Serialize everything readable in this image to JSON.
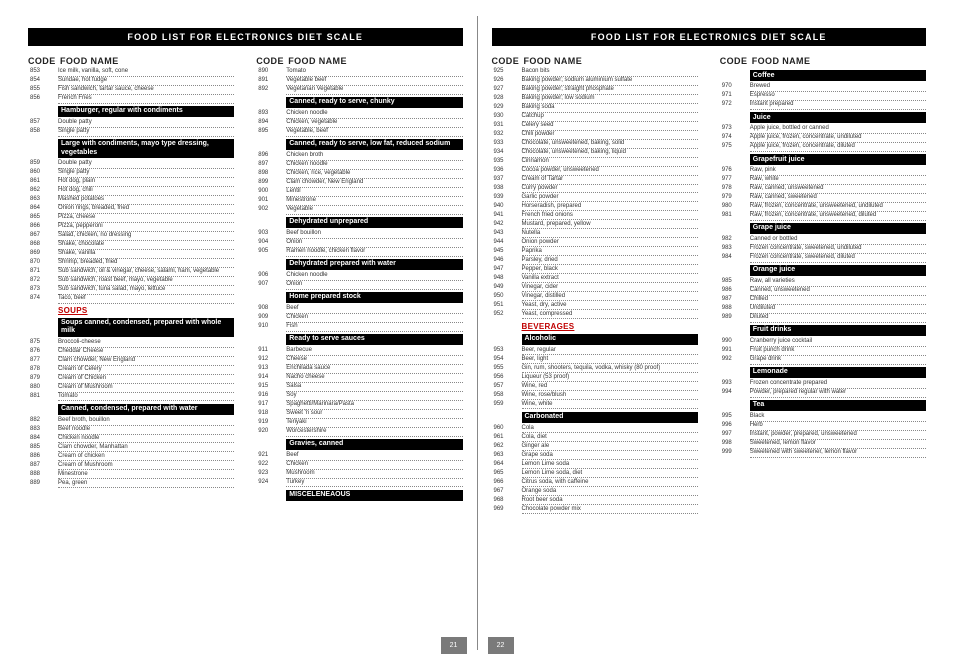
{
  "title": "FOOD LIST FOR ELECTRONICS DIET SCALE",
  "head_code": "CODE",
  "head_name": "FOOD NAME",
  "page_left_num": "21",
  "page_right_num": "22",
  "col1": [
    {
      "t": "row",
      "c": "853",
      "n": "Ice milk, vanilla, soft, cone"
    },
    {
      "t": "row",
      "c": "854",
      "n": "Sundae, hot fudge"
    },
    {
      "t": "row",
      "c": "855",
      "n": "Fish sandwich, tartar sauce, cheese"
    },
    {
      "t": "row",
      "c": "856",
      "n": "French Fries"
    },
    {
      "t": "black",
      "n": "Hamburger, regular with condiments"
    },
    {
      "t": "row",
      "c": "857",
      "n": "Double patty"
    },
    {
      "t": "row",
      "c": "858",
      "n": "Single patty"
    },
    {
      "t": "black",
      "n": "Large with condiments, mayo type dressing, vegetables"
    },
    {
      "t": "row",
      "c": "859",
      "n": "Double patty"
    },
    {
      "t": "row",
      "c": "860",
      "n": "Single patty"
    },
    {
      "t": "row",
      "c": "861",
      "n": "Hot dog, plain"
    },
    {
      "t": "row",
      "c": "862",
      "n": "Hot dog, chili"
    },
    {
      "t": "row",
      "c": "863",
      "n": "Mashed potatoes"
    },
    {
      "t": "row",
      "c": "864",
      "n": "Onion rings, breaded, fried"
    },
    {
      "t": "row",
      "c": "865",
      "n": "Pizza, cheese"
    },
    {
      "t": "row",
      "c": "866",
      "n": "Pizza, pepperoni"
    },
    {
      "t": "row",
      "c": "867",
      "n": "Salad, chicken, no dressing"
    },
    {
      "t": "row",
      "c": "868",
      "n": "Shake, chocolate"
    },
    {
      "t": "row",
      "c": "869",
      "n": "Shake, vanilla"
    },
    {
      "t": "row",
      "c": "870",
      "n": "Shrimp, breaded, fried"
    },
    {
      "t": "row",
      "c": "871",
      "n": "Sub sandwich, oil & vinegar, cheese, salami, ham, vegetable"
    },
    {
      "t": "row",
      "c": "872",
      "n": "Sub sandwich, roast beef, mayo, vegetable"
    },
    {
      "t": "row",
      "c": "873",
      "n": "Sub sandwich, tuna salad, mayo, lettuce"
    },
    {
      "t": "row",
      "c": "874",
      "n": "Taco, beef"
    },
    {
      "t": "red",
      "n": "SOUPS"
    },
    {
      "t": "black",
      "n": "Soups canned, condensed, prepared with whole milk"
    },
    {
      "t": "row",
      "c": "875",
      "n": "Broccoli-cheese"
    },
    {
      "t": "row",
      "c": "876",
      "n": "Cheddar Cheese"
    },
    {
      "t": "row",
      "c": "877",
      "n": "Clam chowder, New England"
    },
    {
      "t": "row",
      "c": "878",
      "n": "Cream of Celery"
    },
    {
      "t": "row",
      "c": "879",
      "n": "Cream of Chicken"
    },
    {
      "t": "row",
      "c": "880",
      "n": "Cream of Mushroom"
    },
    {
      "t": "row",
      "c": "881",
      "n": "Tomato"
    },
    {
      "t": "black",
      "n": "Canned, condensed, prepared with water"
    },
    {
      "t": "row",
      "c": "882",
      "n": "Beef broth, bouillon"
    },
    {
      "t": "row",
      "c": "883",
      "n": "Beef noodle"
    },
    {
      "t": "row",
      "c": "884",
      "n": "Chicken noodle"
    },
    {
      "t": "row",
      "c": "885",
      "n": "Clam chowder, Manhattan"
    },
    {
      "t": "row",
      "c": "886",
      "n": "Cream of chicken"
    },
    {
      "t": "row",
      "c": "887",
      "n": "Cream of Mushroom"
    },
    {
      "t": "row",
      "c": "888",
      "n": "Minestrone"
    },
    {
      "t": "row",
      "c": "889",
      "n": "Pea, green"
    }
  ],
  "col2": [
    {
      "t": "row",
      "c": "890",
      "n": "Tomato"
    },
    {
      "t": "row",
      "c": "891",
      "n": "Vegetable beef"
    },
    {
      "t": "row",
      "c": "892",
      "n": "Vegetarian Vegetable"
    },
    {
      "t": "black",
      "n": "Canned, ready to serve, chunky"
    },
    {
      "t": "row",
      "c": "893",
      "n": "Chicken noodle"
    },
    {
      "t": "row",
      "c": "894",
      "n": "Chicken, vegetable"
    },
    {
      "t": "row",
      "c": "895",
      "n": "Vegetable, beef"
    },
    {
      "t": "black",
      "n": "Canned, ready to serve, low fat, reduced sodium"
    },
    {
      "t": "row",
      "c": "896",
      "n": "Chicken broth"
    },
    {
      "t": "row",
      "c": "897",
      "n": "Chicken noodle"
    },
    {
      "t": "row",
      "c": "898",
      "n": "Chicken, rice, vegetable"
    },
    {
      "t": "row",
      "c": "899",
      "n": "Clam chowder, New England"
    },
    {
      "t": "row",
      "c": "900",
      "n": "Lentil"
    },
    {
      "t": "row",
      "c": "901",
      "n": "Minestrone"
    },
    {
      "t": "row",
      "c": "902",
      "n": "Vegetable"
    },
    {
      "t": "black",
      "n": "Dehydrated unprepared"
    },
    {
      "t": "row",
      "c": "903",
      "n": "Beef bouillon"
    },
    {
      "t": "row",
      "c": "904",
      "n": "Onion"
    },
    {
      "t": "row",
      "c": "905",
      "n": "Ramen noodle, chicken flavor"
    },
    {
      "t": "black",
      "n": "Dehydrated prepared with water"
    },
    {
      "t": "row",
      "c": "906",
      "n": "Chicken noodle"
    },
    {
      "t": "row",
      "c": "907",
      "n": "Onion"
    },
    {
      "t": "black",
      "n": "Home prepared stock"
    },
    {
      "t": "row",
      "c": "908",
      "n": "Beef"
    },
    {
      "t": "row",
      "c": "909",
      "n": "Chicken"
    },
    {
      "t": "row",
      "c": "910",
      "n": "Fish"
    },
    {
      "t": "black",
      "n": "Ready to serve sauces"
    },
    {
      "t": "row",
      "c": "911",
      "n": "Barbecue"
    },
    {
      "t": "row",
      "c": "912",
      "n": "Cheese"
    },
    {
      "t": "row",
      "c": "913",
      "n": "Enchilada sauce"
    },
    {
      "t": "row",
      "c": "914",
      "n": "Nacho cheese"
    },
    {
      "t": "row",
      "c": "915",
      "n": "Salsa"
    },
    {
      "t": "row",
      "c": "916",
      "n": "Soy"
    },
    {
      "t": "row",
      "c": "917",
      "n": "Spaghetti/Marinara/Pasta"
    },
    {
      "t": "row",
      "c": "918",
      "n": "Sweet 'n sour"
    },
    {
      "t": "row",
      "c": "919",
      "n": "Teriyaki"
    },
    {
      "t": "row",
      "c": "920",
      "n": "Worcestershire"
    },
    {
      "t": "black",
      "n": "Gravies, canned"
    },
    {
      "t": "row",
      "c": "921",
      "n": "Beef"
    },
    {
      "t": "row",
      "c": "922",
      "n": "Chicken"
    },
    {
      "t": "row",
      "c": "923",
      "n": "Mushroom"
    },
    {
      "t": "row",
      "c": "924",
      "n": "Turkey"
    },
    {
      "t": "black",
      "n": "MISCELENEAOUS"
    }
  ],
  "col3": [
    {
      "t": "row",
      "c": "925",
      "n": "Bacon bits"
    },
    {
      "t": "row",
      "c": "926",
      "n": "Baking powder; sodium aluminium sulfate"
    },
    {
      "t": "row",
      "c": "927",
      "n": "Baking powder; straight phosphate"
    },
    {
      "t": "row",
      "c": "928",
      "n": "Baking powder; low sodium"
    },
    {
      "t": "row",
      "c": "929",
      "n": "Baking soda"
    },
    {
      "t": "row",
      "c": "930",
      "n": "Catchup"
    },
    {
      "t": "row",
      "c": "931",
      "n": "Celery seed"
    },
    {
      "t": "row",
      "c": "932",
      "n": "Chili powder"
    },
    {
      "t": "row",
      "c": "933",
      "n": "Chocolate, unsweetened, baking, solid"
    },
    {
      "t": "row",
      "c": "934",
      "n": "Chocolate, unsweetened, baking, liquid"
    },
    {
      "t": "row",
      "c": "935",
      "n": "Cinnamon"
    },
    {
      "t": "row",
      "c": "936",
      "n": "Cocoa powder, unsweetened"
    },
    {
      "t": "row",
      "c": "937",
      "n": "Cream of Tartar"
    },
    {
      "t": "row",
      "c": "938",
      "n": "Curry powder"
    },
    {
      "t": "row",
      "c": "939",
      "n": "Garlic powder"
    },
    {
      "t": "row",
      "c": "940",
      "n": "Horseradish, prepared"
    },
    {
      "t": "row",
      "c": "941",
      "n": "French fried onions"
    },
    {
      "t": "row",
      "c": "942",
      "n": "Mustard, prepared, yellow"
    },
    {
      "t": "row",
      "c": "943",
      "n": "Nutella"
    },
    {
      "t": "row",
      "c": "944",
      "n": "Onion powder"
    },
    {
      "t": "row",
      "c": "945",
      "n": "Paprika"
    },
    {
      "t": "row",
      "c": "946",
      "n": "Parsley, dried"
    },
    {
      "t": "row",
      "c": "947",
      "n": "Pepper, black"
    },
    {
      "t": "row",
      "c": "948",
      "n": "Vanilla extract"
    },
    {
      "t": "row",
      "c": "949",
      "n": "Vinegar, cider"
    },
    {
      "t": "row",
      "c": "950",
      "n": "Vinegar, distilled"
    },
    {
      "t": "row",
      "c": "951",
      "n": "Yeast, dry, active"
    },
    {
      "t": "row",
      "c": "952",
      "n": "Yeast, compressed"
    },
    {
      "t": "red",
      "n": "BEVERAGES"
    },
    {
      "t": "black",
      "n": "Alcoholic"
    },
    {
      "t": "row",
      "c": "953",
      "n": "Beer, regular"
    },
    {
      "t": "row",
      "c": "954",
      "n": "Beer, light"
    },
    {
      "t": "row",
      "c": "955",
      "n": "Gin, rum, shooters, tequila, vodka, whisky (80 proof)"
    },
    {
      "t": "row",
      "c": "956",
      "n": "Liqueur (53 proof)"
    },
    {
      "t": "row",
      "c": "957",
      "n": "Wine, red"
    },
    {
      "t": "row",
      "c": "958",
      "n": "Wine, rose/blush"
    },
    {
      "t": "row",
      "c": "959",
      "n": "Wine, white"
    },
    {
      "t": "black",
      "n": "Carbonated"
    },
    {
      "t": "row",
      "c": "960",
      "n": "Cola"
    },
    {
      "t": "row",
      "c": "961",
      "n": "Cola, diet"
    },
    {
      "t": "row",
      "c": "962",
      "n": "Ginger ale"
    },
    {
      "t": "row",
      "c": "963",
      "n": "Grape soda"
    },
    {
      "t": "row",
      "c": "964",
      "n": "Lemon Lime soda"
    },
    {
      "t": "row",
      "c": "965",
      "n": "Lemon Lime soda, diet"
    },
    {
      "t": "row",
      "c": "966",
      "n": "Citrus soda, with caffeine"
    },
    {
      "t": "row",
      "c": "967",
      "n": "Orange soda"
    },
    {
      "t": "row",
      "c": "968",
      "n": "Root beer soda"
    },
    {
      "t": "row",
      "c": "969",
      "n": "Chocolate powder mix"
    }
  ],
  "col4": [
    {
      "t": "black",
      "n": "Coffee"
    },
    {
      "t": "row",
      "c": "970",
      "n": "Brewed"
    },
    {
      "t": "row",
      "c": "971",
      "n": "Espresso"
    },
    {
      "t": "row",
      "c": "972",
      "n": "Instant prepared"
    },
    {
      "t": "black",
      "n": "Juice"
    },
    {
      "t": "row",
      "c": "973",
      "n": "Apple juice, bottled or canned"
    },
    {
      "t": "row",
      "c": "974",
      "n": "Apple juice, frozen, concentrate, undiluted"
    },
    {
      "t": "row",
      "c": "975",
      "n": "Apple juice, frozen, concentrate, diluted"
    },
    {
      "t": "black",
      "n": "Grapefruit juice"
    },
    {
      "t": "row",
      "c": "976",
      "n": "Raw, pink"
    },
    {
      "t": "row",
      "c": "977",
      "n": "Raw, white"
    },
    {
      "t": "row",
      "c": "978",
      "n": "Raw, canned, unsweetened"
    },
    {
      "t": "row",
      "c": "979",
      "n": "Raw, canned, sweetened"
    },
    {
      "t": "row",
      "c": "980",
      "n": "Raw, frozen, concentrate, unsweetened, undiluted"
    },
    {
      "t": "row",
      "c": "981",
      "n": "Raw, frozen, concentrate, unsweetened, diluted"
    },
    {
      "t": "black",
      "n": "Grape juice"
    },
    {
      "t": "row",
      "c": "982",
      "n": "Canned or bottled"
    },
    {
      "t": "row",
      "c": "983",
      "n": "Frozen concentrate, sweetened, undiluted"
    },
    {
      "t": "row",
      "c": "984",
      "n": "Frozen concentrate, sweetened, diluted"
    },
    {
      "t": "black",
      "n": "Orange juice"
    },
    {
      "t": "row",
      "c": "985",
      "n": "Raw, all varieties"
    },
    {
      "t": "row",
      "c": "986",
      "n": "Canned, unsweetened"
    },
    {
      "t": "row",
      "c": "987",
      "n": "Chilled"
    },
    {
      "t": "row",
      "c": "988",
      "n": "Undiluted"
    },
    {
      "t": "row",
      "c": "989",
      "n": "Diluted"
    },
    {
      "t": "black",
      "n": "Fruit drinks"
    },
    {
      "t": "row",
      "c": "990",
      "n": "Cranberry juice cocktail"
    },
    {
      "t": "row",
      "c": "991",
      "n": "Fruit punch drink"
    },
    {
      "t": "row",
      "c": "992",
      "n": "Grape drink"
    },
    {
      "t": "black",
      "n": "Lemonade"
    },
    {
      "t": "row",
      "c": "993",
      "n": "Frozen concentrate prepared"
    },
    {
      "t": "row",
      "c": "994",
      "n": "Powder, prepared regular with water"
    },
    {
      "t": "black",
      "n": "Tea"
    },
    {
      "t": "row",
      "c": "995",
      "n": "Black"
    },
    {
      "t": "row",
      "c": "996",
      "n": "Herb"
    },
    {
      "t": "row",
      "c": "997",
      "n": "Instant, powder, prepared, unsweetened"
    },
    {
      "t": "row",
      "c": "998",
      "n": "Sweetened, lemon flavor"
    },
    {
      "t": "row",
      "c": "999",
      "n": "Sweetened with sweetener, lemon flavor"
    }
  ]
}
